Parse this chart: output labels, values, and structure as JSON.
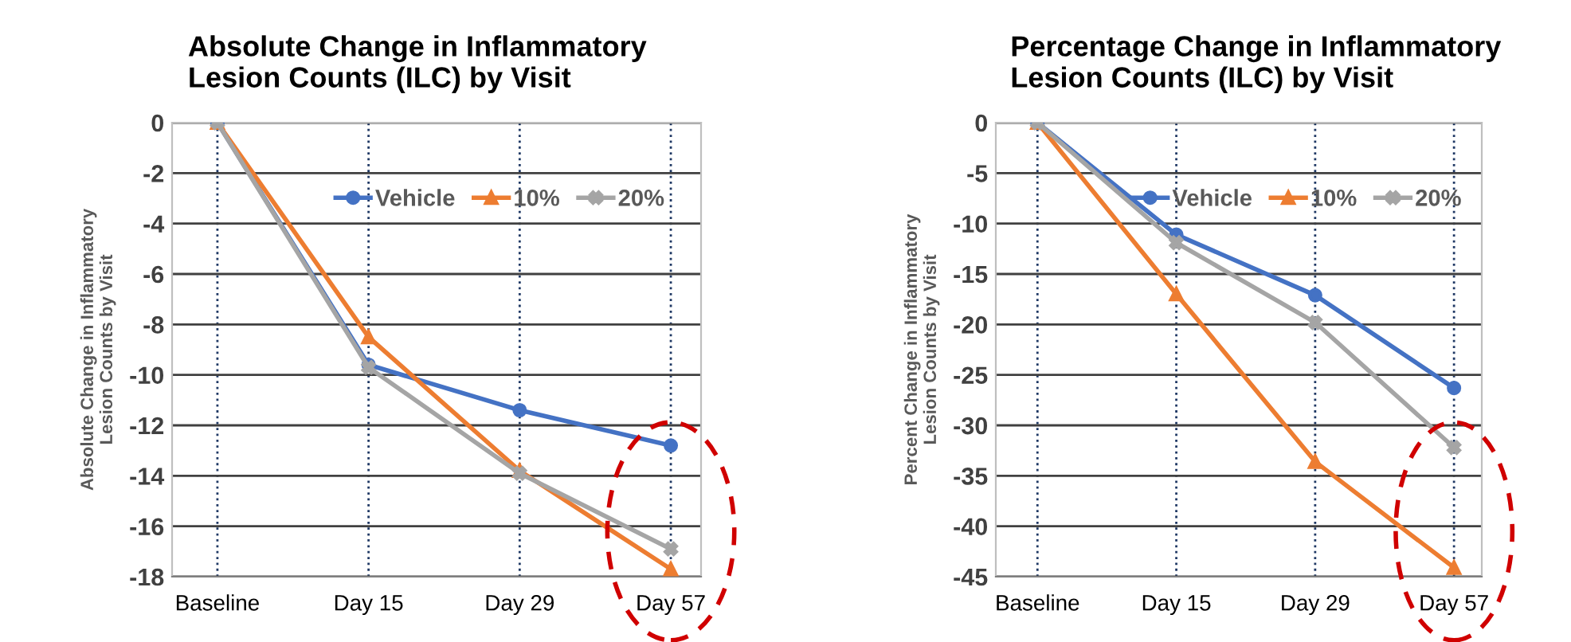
{
  "chart_data": [
    {
      "type": "line",
      "title": "Absolute Change in Inflammatory\nLesion Counts (ILC) by Visit",
      "ylabel": "Absolute Change in Inflammatory\nLesion Counts by Visit",
      "categories": [
        "Baseline",
        "Day 15",
        "Day 29",
        "Day 57"
      ],
      "ylim": [
        -18,
        0
      ],
      "yticks": [
        0,
        -2,
        -4,
        -6,
        -8,
        -10,
        -12,
        -14,
        -16,
        -18
      ],
      "grid": true,
      "legend": "top",
      "series": [
        {
          "name": "Vehicle",
          "color": "#4472c4",
          "marker": "circle",
          "values": [
            0,
            -9.6,
            -11.4,
            -12.8
          ]
        },
        {
          "name": "10%",
          "color": "#ed7d31",
          "marker": "triangle",
          "values": [
            0,
            -8.5,
            -13.8,
            -17.7
          ]
        },
        {
          "name": "20%",
          "color": "#a5a5a5",
          "marker": "cross",
          "values": [
            0,
            -9.7,
            -13.9,
            -16.9
          ]
        }
      ]
    },
    {
      "type": "line",
      "title": "Percentage Change in Inflammatory\nLesion Counts (ILC) by Visit",
      "ylabel": "Percent Change in Inflammatory\nLesion Counts by Visit",
      "categories": [
        "Baseline",
        "Day 15",
        "Day 29",
        "Day 57"
      ],
      "ylim": [
        -45,
        0
      ],
      "yticks": [
        0,
        -5,
        -10,
        -15,
        -20,
        -25,
        -30,
        -35,
        -40,
        -45
      ],
      "grid": true,
      "legend": "top",
      "series": [
        {
          "name": "Vehicle",
          "color": "#4472c4",
          "marker": "circle",
          "values": [
            0,
            -11.1,
            -17.1,
            -26.3
          ]
        },
        {
          "name": "10%",
          "color": "#ed7d31",
          "marker": "triangle",
          "values": [
            0,
            -17.0,
            -33.6,
            -44.1
          ]
        },
        {
          "name": "20%",
          "color": "#a5a5a5",
          "marker": "cross",
          "values": [
            0,
            -11.9,
            -19.8,
            -32.2
          ]
        }
      ]
    }
  ]
}
